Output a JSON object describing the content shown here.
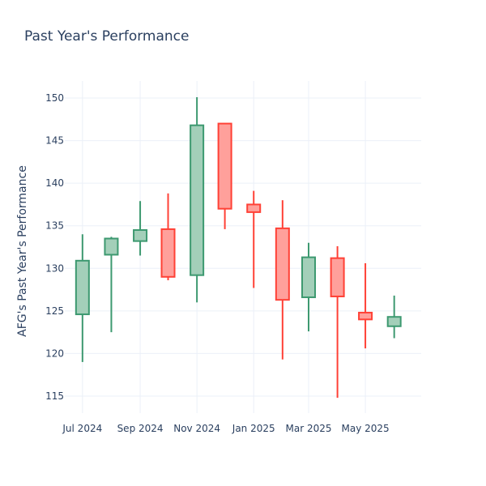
{
  "chart_data": {
    "type": "candlestick",
    "title": "Past Year's Performance",
    "ylabel": "AFG's Past Year's Performance",
    "xlabel": "",
    "ylim": [
      113,
      152
    ],
    "yticks": [
      115,
      120,
      125,
      130,
      135,
      140,
      145,
      150
    ],
    "xticks": [
      {
        "label": "Jul 2024",
        "date": "2024-07-01"
      },
      {
        "label": "Sep 2024",
        "date": "2024-09-01"
      },
      {
        "label": "Nov 2024",
        "date": "2024-11-01"
      },
      {
        "label": "Jan 2025",
        "date": "2025-01-01"
      },
      {
        "label": "Mar 2025",
        "date": "2025-03-01"
      },
      {
        "label": "May 2025",
        "date": "2025-05-01"
      }
    ],
    "xrange": [
      "2024-06-12",
      "2025-06-30"
    ],
    "grid": true,
    "colors": {
      "increasing_line": "#3d9970",
      "increasing_fill": "#a3cfb9",
      "decreasing_line": "#ff4136",
      "decreasing_fill": "#ffa09b",
      "grid": "#ebf0f8",
      "text": "#2a3f5f"
    },
    "candles": [
      {
        "date": "2024-07-01",
        "open": 124.6,
        "high": 134.0,
        "low": 119.0,
        "close": 130.9
      },
      {
        "date": "2024-08-01",
        "open": 131.6,
        "high": 133.7,
        "low": 122.5,
        "close": 133.5
      },
      {
        "date": "2024-09-01",
        "open": 133.2,
        "high": 137.9,
        "low": 131.5,
        "close": 134.5
      },
      {
        "date": "2024-10-01",
        "open": 134.6,
        "high": 138.8,
        "low": 128.6,
        "close": 129.0
      },
      {
        "date": "2024-11-01",
        "open": 129.2,
        "high": 150.1,
        "low": 126.0,
        "close": 146.8
      },
      {
        "date": "2024-12-01",
        "open": 147.0,
        "high": 147.0,
        "low": 134.6,
        "close": 137.0
      },
      {
        "date": "2025-01-01",
        "open": 137.5,
        "high": 139.1,
        "low": 127.7,
        "close": 136.6
      },
      {
        "date": "2025-02-01",
        "open": 134.7,
        "high": 138.0,
        "low": 119.3,
        "close": 126.3
      },
      {
        "date": "2025-03-01",
        "open": 126.6,
        "high": 133.0,
        "low": 122.6,
        "close": 131.3
      },
      {
        "date": "2025-04-01",
        "open": 131.2,
        "high": 132.6,
        "low": 114.8,
        "close": 126.7
      },
      {
        "date": "2025-05-01",
        "open": 124.8,
        "high": 130.6,
        "low": 120.6,
        "close": 124.0
      },
      {
        "date": "2025-06-01",
        "open": 123.2,
        "high": 126.8,
        "low": 121.8,
        "close": 124.3
      }
    ]
  }
}
